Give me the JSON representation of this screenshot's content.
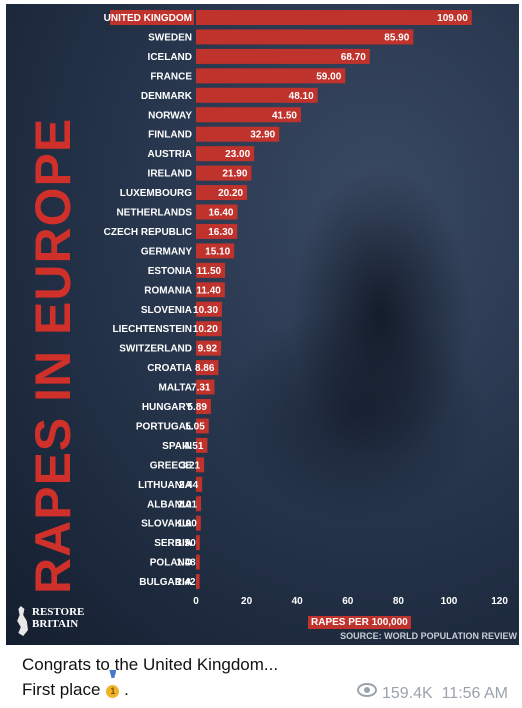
{
  "chart_data": {
    "type": "bar",
    "orientation": "horizontal",
    "title": "RAPES IN EUROPE",
    "xlabel": "RAPES PER 100,000",
    "xlim": [
      0,
      120
    ],
    "xticks": [
      "0",
      "20",
      "40",
      "60",
      "80",
      "100",
      "120"
    ],
    "grid": false,
    "bar_color": "#c0322c",
    "categories": [
      "UNITED KINGDOM",
      "SWEDEN",
      "ICELAND",
      "FRANCE",
      "DENMARK",
      "NORWAY",
      "FINLAND",
      "AUSTRIA",
      "IRELAND",
      "LUXEMBOURG",
      "NETHERLANDS",
      "CZECH REPUBLIC",
      "GERMANY",
      "ESTONIA",
      "ROMANIA",
      "SLOVENIA",
      "LIECHTENSTEIN",
      "SWITZERLAND",
      "CROATIA",
      "MALTA",
      "HUNGARY",
      "PORTUGAL",
      "SPAIN",
      "GREECE",
      "LITHUANIA",
      "ALBANIA",
      "SLOVAKIA",
      "SERBIA",
      "POLAND",
      "BULGARIA"
    ],
    "values": [
      109.0,
      85.9,
      68.7,
      59.0,
      48.1,
      41.5,
      32.9,
      23.0,
      21.9,
      20.2,
      16.4,
      16.3,
      15.1,
      11.5,
      11.4,
      10.3,
      10.2,
      9.92,
      8.86,
      7.31,
      5.89,
      5.05,
      4.51,
      3.21,
      2.44,
      2.01,
      1.9,
      1.5,
      1.48,
      1.42
    ],
    "value_labels": [
      "109.00",
      "85.90",
      "68.70",
      "59.00",
      "48.10",
      "41.50",
      "32.90",
      "23.00",
      "21.90",
      "20.20",
      "16.40",
      "16.30",
      "15.10",
      "11.50",
      "11.40",
      "10.30",
      "10.20",
      "9.92",
      "8.86",
      "7.31",
      "5.89",
      "5.05",
      "4.51",
      "3.21",
      "2.44",
      "2.01",
      "1.90",
      "1.50",
      "1.48",
      "1.42"
    ],
    "source": "SOURCE: WORLD POPULATION REVIEW"
  },
  "logo": {
    "line1": "RESTORE",
    "line2": "BRITAIN"
  },
  "post": {
    "caption_line1": "Congrats to the United Kingdom...",
    "caption_line2": "First place",
    "medal_icon": "first-place-medal-icon",
    "views": "159.4K",
    "time": "11:56 AM"
  }
}
